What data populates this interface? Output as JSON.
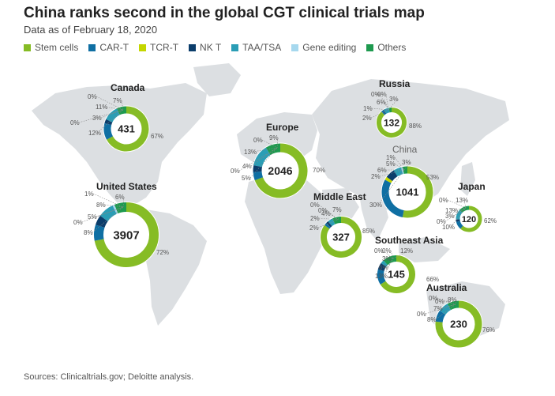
{
  "header": {
    "title": "China ranks second in the global CGT clinical trials map",
    "subtitle": "Data as of February 18, 2020"
  },
  "footer": {
    "source": "Sources: Clinicaltrials.gov; Deloitte analysis."
  },
  "colors": {
    "Stem cells": "#86bc25",
    "CAR-T": "#0f6fa3",
    "TCR-T": "#c4d600",
    "NK T": "#0b3d6b",
    "TAA/TSA": "#2a9db5",
    "Gene editing": "#a6d8ee",
    "Others": "#1e9a4f",
    "map": "#dcdfe2"
  },
  "chart_data": {
    "type": "pie",
    "title": "China ranks second in the global CGT clinical trials map",
    "subtitle": "Data as of February 18, 2020",
    "legend": [
      "Stem cells",
      "CAR-T",
      "TCR-T",
      "NK T",
      "TAA/TSA",
      "Gene editing",
      "Others"
    ],
    "regions": [
      {
        "id": "canada",
        "name": "Canada",
        "total": "431",
        "slices": [
          {
            "category": "Stem cells",
            "value": 67,
            "label": "67%"
          },
          {
            "category": "CAR-T",
            "value": 12,
            "label": "12%"
          },
          {
            "category": "TCR-T",
            "value": 0,
            "label": "0%"
          },
          {
            "category": "NK T",
            "value": 3,
            "label": "3%"
          },
          {
            "category": "TAA/TSA",
            "value": 11,
            "label": "11%"
          },
          {
            "category": "Gene editing",
            "value": 0,
            "label": "0%"
          },
          {
            "category": "Others",
            "value": 7,
            "label": "7%"
          }
        ]
      },
      {
        "id": "united-states",
        "name": "United States",
        "total": "3907",
        "slices": [
          {
            "category": "Stem cells",
            "value": 72,
            "label": "72%"
          },
          {
            "category": "CAR-T",
            "value": 8,
            "label": "8%"
          },
          {
            "category": "TCR-T",
            "value": 0,
            "label": "0%"
          },
          {
            "category": "NK T",
            "value": 5,
            "label": "5%"
          },
          {
            "category": "TAA/TSA",
            "value": 8,
            "label": "8%"
          },
          {
            "category": "Gene editing",
            "value": 1,
            "label": "1%"
          },
          {
            "category": "Others",
            "value": 6,
            "label": "6%"
          }
        ]
      },
      {
        "id": "europe",
        "name": "Europe",
        "total": "2046",
        "slices": [
          {
            "category": "Stem cells",
            "value": 70,
            "label": "70%"
          },
          {
            "category": "CAR-T",
            "value": 5,
            "label": "5%"
          },
          {
            "category": "TCR-T",
            "value": 0,
            "label": "0%"
          },
          {
            "category": "NK T",
            "value": 4,
            "label": "4%"
          },
          {
            "category": "TAA/TSA",
            "value": 13,
            "label": "13%"
          },
          {
            "category": "Gene editing",
            "value": 0,
            "label": "0%"
          },
          {
            "category": "Others",
            "value": 9,
            "label": "9%"
          }
        ]
      },
      {
        "id": "russia",
        "name": "Russia",
        "total": "132",
        "slices": [
          {
            "category": "Stem cells",
            "value": 88,
            "label": "88%"
          },
          {
            "category": "CAR-T",
            "value": 2,
            "label": "2%"
          },
          {
            "category": "TCR-T",
            "value": 0,
            "label": "0%"
          },
          {
            "category": "NK T",
            "value": 1,
            "label": "1%"
          },
          {
            "category": "TAA/TSA",
            "value": 6,
            "label": "6%"
          },
          {
            "category": "Gene editing",
            "value": 0,
            "label": "0%"
          },
          {
            "category": "Others",
            "value": 3,
            "label": "3%"
          }
        ]
      },
      {
        "id": "china",
        "name": "China",
        "total": "1041",
        "slices": [
          {
            "category": "Stem cells",
            "value": 53,
            "label": "53%"
          },
          {
            "category": "CAR-T",
            "value": 30,
            "label": "30%"
          },
          {
            "category": "TCR-T",
            "value": 2,
            "label": "2%"
          },
          {
            "category": "NK T",
            "value": 6,
            "label": "6%"
          },
          {
            "category": "TAA/TSA",
            "value": 5,
            "label": "5%"
          },
          {
            "category": "Gene editing",
            "value": 1,
            "label": "1%"
          },
          {
            "category": "Others",
            "value": 3,
            "label": "3%"
          }
        ]
      },
      {
        "id": "japan",
        "name": "Japan",
        "total": "120",
        "slices": [
          {
            "category": "Stem cells",
            "value": 62,
            "label": "62%"
          },
          {
            "category": "CAR-T",
            "value": 10,
            "label": "10%"
          },
          {
            "category": "TCR-T",
            "value": 0,
            "label": "0%"
          },
          {
            "category": "NK T",
            "value": 3,
            "label": "3%"
          },
          {
            "category": "TAA/TSA",
            "value": 13,
            "label": "13%"
          },
          {
            "category": "Gene editing",
            "value": 0,
            "label": "0%"
          },
          {
            "category": "Others",
            "value": 13,
            "label": "13%"
          }
        ]
      },
      {
        "id": "middle-east",
        "name": "Middle East",
        "total": "327",
        "slices": [
          {
            "category": "Stem cells",
            "value": 85,
            "label": "85%"
          },
          {
            "category": "CAR-T",
            "value": 2,
            "label": "2%"
          },
          {
            "category": "TCR-T",
            "value": 0,
            "label": "0%"
          },
          {
            "category": "NK T",
            "value": 2,
            "label": "2%"
          },
          {
            "category": "TAA/TSA",
            "value": 4,
            "label": "4%"
          },
          {
            "category": "Gene editing",
            "value": 0,
            "label": "0%"
          },
          {
            "category": "Others",
            "value": 7,
            "label": "7%"
          }
        ]
      },
      {
        "id": "southeast-asia",
        "name": "Southeast Asia",
        "total": "145",
        "slices": [
          {
            "category": "Stem cells",
            "value": 66,
            "label": "66%"
          },
          {
            "category": "CAR-T",
            "value": 13,
            "label": "13%"
          },
          {
            "category": "TCR-T",
            "value": 0,
            "label": "0%"
          },
          {
            "category": "NK T",
            "value": 6,
            "label": "6%"
          },
          {
            "category": "TAA/TSA",
            "value": 3,
            "label": "3%"
          },
          {
            "category": "Gene editing",
            "value": 0,
            "label": "0%"
          },
          {
            "category": "Others",
            "value": 12,
            "label": "12%"
          }
        ]
      },
      {
        "id": "australia",
        "name": "Australia",
        "total": "230",
        "slices": [
          {
            "category": "Stem cells",
            "value": 76,
            "label": "76%"
          },
          {
            "category": "CAR-T",
            "value": 8,
            "label": "8%"
          },
          {
            "category": "TCR-T",
            "value": 0,
            "label": "0%"
          },
          {
            "category": "NK T",
            "value": 0,
            "label": "0%"
          },
          {
            "category": "TAA/TSA",
            "value": 7,
            "label": "7%"
          },
          {
            "category": "Gene editing",
            "value": 0,
            "label": "0%"
          },
          {
            "category": "Others",
            "value": 8,
            "label": "8%"
          }
        ]
      }
    ]
  }
}
